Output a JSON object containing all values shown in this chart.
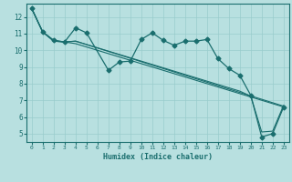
{
  "title": "",
  "xlabel": "Humidex (Indice chaleur)",
  "bg_color": "#b8e0e0",
  "grid_color": "#99cccc",
  "line_color": "#1a6e6e",
  "xlim": [
    -0.5,
    23.5
  ],
  "ylim": [
    4.5,
    12.8
  ],
  "yticks": [
    5,
    6,
    7,
    8,
    9,
    10,
    11,
    12
  ],
  "xticks": [
    0,
    1,
    2,
    3,
    4,
    5,
    6,
    7,
    8,
    9,
    10,
    11,
    12,
    13,
    14,
    15,
    16,
    17,
    18,
    19,
    20,
    21,
    22,
    23
  ],
  "series": [
    {
      "x": [
        0,
        1,
        2,
        3,
        4,
        5,
        7,
        8,
        9,
        10,
        11,
        12,
        13,
        14,
        15,
        16,
        17,
        18,
        19,
        20,
        21,
        22,
        23
      ],
      "y": [
        12.5,
        11.1,
        10.6,
        10.5,
        11.35,
        11.05,
        8.8,
        9.3,
        9.35,
        10.65,
        11.05,
        10.6,
        10.3,
        10.55,
        10.55,
        10.65,
        9.5,
        8.9,
        8.5,
        7.3,
        4.8,
        5.0,
        6.6
      ],
      "marker": "D",
      "markersize": 2.5,
      "linewidth": 0.9
    },
    {
      "x": [
        0,
        1,
        2,
        3,
        4,
        23
      ],
      "y": [
        12.5,
        11.1,
        10.6,
        10.5,
        10.4,
        6.6
      ],
      "marker": null,
      "linewidth": 0.8
    },
    {
      "x": [
        0,
        1,
        2,
        3,
        4,
        23
      ],
      "y": [
        12.5,
        11.1,
        10.55,
        10.5,
        10.55,
        6.65
      ],
      "marker": null,
      "linewidth": 0.8
    },
    {
      "x": [
        0,
        1,
        2,
        3,
        4,
        19,
        20,
        21,
        22,
        23
      ],
      "y": [
        12.5,
        11.1,
        10.55,
        10.5,
        10.55,
        7.55,
        7.25,
        5.1,
        5.15,
        6.7
      ],
      "marker": null,
      "linewidth": 0.8
    }
  ]
}
